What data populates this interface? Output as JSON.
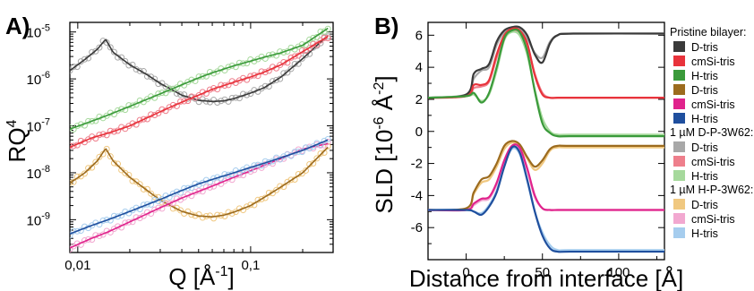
{
  "panels": {
    "a_label": "A)",
    "b_label": "B)"
  },
  "colors": {
    "D-tris": "#3a3a3a",
    "cmSi-tris": "#e8333b",
    "H-tris": "#3a9a3a",
    "D2": "#9c6b1e",
    "cmSi2": "#e0238c",
    "H2": "#1f4f9e",
    "D3": "#a8a8a8",
    "cmSi3": "#ee7f8c",
    "H3": "#a6d99c",
    "D4": "#f0c880",
    "cmSi4": "#f2a8d0",
    "H4": "#a6cdee"
  },
  "chart_data": [
    {
      "type": "scatter",
      "panel": "A)",
      "xlabel": "Q [Å⁻¹]",
      "ylabel": "RQ⁴",
      "xscale": "log",
      "yscale": "log",
      "xlim": [
        0.009,
        0.3
      ],
      "ylim": [
        2e-10,
        1.6e-05
      ],
      "xticklabels": [
        {
          "value": 0.01,
          "label": "0,01"
        },
        {
          "value": 0.1,
          "label": "0,1"
        }
      ],
      "yticklabels": [
        {
          "value": 1e-05,
          "label": "10-5",
          "base": "10",
          "exp": "-5"
        },
        {
          "value": 1e-06,
          "label": "10-6",
          "base": "10",
          "exp": "-6"
        },
        {
          "value": 1e-07,
          "label": "10-7",
          "base": "10",
          "exp": "-7"
        },
        {
          "value": 1e-08,
          "label": "10-8",
          "base": "10",
          "exp": "-8"
        },
        {
          "value": 1e-09,
          "label": "10-9",
          "base": "10",
          "exp": "-9"
        }
      ],
      "series": [
        {
          "group": "Pristine bilayer",
          "contrast": "D-tris",
          "color": "#3a3a3a",
          "marker_color": "#a8a8a8",
          "x": [
            0.009,
            0.011,
            0.013,
            0.0145,
            0.016,
            0.02,
            0.025,
            0.03,
            0.04,
            0.05,
            0.06,
            0.07,
            0.08,
            0.1,
            0.12,
            0.15,
            0.2,
            0.28
          ],
          "y": [
            1.5e-06,
            2.6e-06,
            4.3e-06,
            7e-06,
            3.7e-06,
            2e-06,
            1.25e-06,
            8e-07,
            4.5e-07,
            3.5e-07,
            3.3e-07,
            3.4e-07,
            3.8e-07,
            5e-07,
            6.5e-07,
            1.1e-06,
            2.7e-06,
            8.5e-06
          ]
        },
        {
          "group": "Pristine bilayer",
          "contrast": "cmSi-tris",
          "color": "#e8333b",
          "marker_color": "#ee7f8c",
          "x": [
            0.009,
            0.012,
            0.015,
            0.02,
            0.03,
            0.04,
            0.05,
            0.06,
            0.08,
            0.1,
            0.12,
            0.15,
            0.2,
            0.28
          ],
          "y": [
            3.5e-08,
            5.5e-08,
            7e-08,
            1e-07,
            2e-07,
            3.2e-07,
            4.5e-07,
            6e-07,
            8.5e-07,
            1.1e-06,
            1.4e-06,
            2e-06,
            3.8e-06,
            8e-06
          ]
        },
        {
          "group": "Pristine bilayer",
          "contrast": "H-tris",
          "color": "#3a9a3a",
          "marker_color": "#a6d99c",
          "x": [
            0.009,
            0.012,
            0.015,
            0.02,
            0.03,
            0.04,
            0.05,
            0.06,
            0.08,
            0.1,
            0.12,
            0.15,
            0.2,
            0.28
          ],
          "y": [
            8.5e-08,
            1.25e-07,
            1.7e-07,
            2.6e-07,
            4.8e-07,
            7.5e-07,
            1.05e-06,
            1.35e-06,
            1.9e-06,
            2.4e-06,
            2.9e-06,
            3.6e-06,
            5.2e-06,
            1.2e-05
          ]
        },
        {
          "group": "1 µM H-P-3W62",
          "contrast": "D-tris",
          "color": "#9c6b1e",
          "marker_color": "#f0c880",
          "x": [
            0.009,
            0.011,
            0.013,
            0.0145,
            0.016,
            0.02,
            0.025,
            0.03,
            0.04,
            0.05,
            0.06,
            0.07,
            0.08,
            0.1,
            0.12,
            0.15,
            0.2,
            0.28
          ],
          "y": [
            6e-09,
            1e-08,
            1.8e-08,
            3.3e-08,
            1.8e-08,
            8e-09,
            4.3e-09,
            2.6e-09,
            1.5e-09,
            1.2e-09,
            1.15e-09,
            1.25e-09,
            1.45e-09,
            2e-09,
            3e-09,
            5e-09,
            1e-08,
            3.5e-08
          ]
        },
        {
          "group": "Pristine bilayer",
          "contrast": "cmSi-tris",
          "color": "#e0238c",
          "marker_color": "#f2a8d0",
          "x": [
            0.009,
            0.012,
            0.015,
            0.02,
            0.03,
            0.04,
            0.05,
            0.06,
            0.08,
            0.1,
            0.12,
            0.15,
            0.2,
            0.28
          ],
          "y": [
            2.5e-10,
            4e-10,
            5.5e-10,
            9e-10,
            1.8e-09,
            2.9e-09,
            4e-09,
            5.2e-09,
            8e-09,
            1.1e-08,
            1.45e-08,
            2e-08,
            3.2e-08,
            4.2e-08
          ]
        },
        {
          "group": "Pristine bilayer",
          "contrast": "H-tris",
          "color": "#1f4f9e",
          "marker_color": "#a6cdee",
          "x": [
            0.009,
            0.012,
            0.015,
            0.02,
            0.03,
            0.04,
            0.05,
            0.06,
            0.08,
            0.1,
            0.12,
            0.15,
            0.2,
            0.28
          ],
          "y": [
            5e-10,
            7.5e-10,
            1e-09,
            1.5e-09,
            2.7e-09,
            4.2e-09,
            5.8e-09,
            7.2e-09,
            1e-08,
            1.3e-08,
            1.6e-08,
            2.1e-08,
            3e-08,
            5e-08
          ]
        }
      ]
    },
    {
      "type": "line",
      "panel": "B)",
      "xlabel": "Distance from interface [Å]",
      "ylabel": "SLD [10-6 Å-2]",
      "ylabel_parts": {
        "pre": "SLD [10",
        "sup1": "-6",
        "mid": " Å",
        "sup2": "-2",
        "post": "]"
      },
      "xlim": [
        -25,
        130
      ],
      "ylim": [
        -8,
        6.8
      ],
      "xticks": [
        0,
        50,
        100
      ],
      "yticks": [
        -6,
        -4,
        -2,
        0,
        2,
        4,
        6
      ],
      "series": [
        {
          "contrast": "D-tris",
          "color": "#3a3a3a",
          "x": [
            -25,
            0,
            5,
            10,
            15,
            20,
            25,
            30,
            35,
            40,
            45,
            50,
            55,
            60,
            70,
            130
          ],
          "y": [
            2.1,
            2.3,
            3.6,
            3.9,
            4.2,
            5.6,
            6.3,
            6.5,
            6.5,
            6.0,
            4.8,
            4.3,
            5.5,
            6.0,
            6.1,
            6.1
          ]
        },
        {
          "contrast": "cmSi-tris",
          "color": "#e8333b",
          "x": [
            -25,
            0,
            5,
            10,
            15,
            20,
            25,
            30,
            35,
            40,
            45,
            50,
            55,
            60,
            70,
            130
          ],
          "y": [
            2.1,
            2.2,
            2.9,
            2.9,
            3.2,
            4.8,
            6.0,
            6.4,
            6.3,
            5.5,
            3.5,
            2.3,
            2.1,
            2.1,
            2.1,
            2.1
          ]
        },
        {
          "contrast": "H-tris",
          "color": "#3a9a3a",
          "x": [
            -25,
            0,
            5,
            10,
            15,
            20,
            25,
            30,
            35,
            40,
            45,
            50,
            55,
            60,
            70,
            130
          ],
          "y": [
            2.1,
            2.2,
            2.4,
            1.8,
            2.4,
            4.0,
            5.8,
            6.3,
            6.2,
            5.0,
            2.5,
            0.5,
            -0.1,
            -0.3,
            -0.3,
            -0.3
          ]
        },
        {
          "contrast": "D-tris",
          "color": "#9c6b1e",
          "x": [
            -25,
            0,
            5,
            10,
            15,
            20,
            25,
            30,
            35,
            40,
            45,
            50,
            55,
            60,
            70,
            130
          ],
          "y": [
            -4.9,
            -4.8,
            -3.8,
            -3.0,
            -2.8,
            -2.0,
            -0.9,
            -0.6,
            -0.8,
            -1.6,
            -2.2,
            -1.8,
            -1.1,
            -0.9,
            -0.9,
            -0.9
          ]
        },
        {
          "contrast": "cmSi-tris",
          "color": "#e0238c",
          "x": [
            -25,
            0,
            5,
            10,
            15,
            20,
            25,
            30,
            35,
            40,
            45,
            50,
            55,
            60,
            70,
            130
          ],
          "y": [
            -4.9,
            -4.9,
            -4.5,
            -4.2,
            -4.1,
            -3.2,
            -1.8,
            -0.9,
            -1.0,
            -2.3,
            -4.0,
            -4.8,
            -4.9,
            -4.9,
            -4.9,
            -4.9
          ]
        },
        {
          "contrast": "H-tris",
          "color": "#1f4f9e",
          "x": [
            -25,
            0,
            5,
            10,
            15,
            20,
            25,
            30,
            35,
            40,
            45,
            50,
            55,
            60,
            70,
            130
          ],
          "y": [
            -4.9,
            -4.9,
            -5.0,
            -5.2,
            -4.7,
            -3.8,
            -2.2,
            -1.0,
            -1.3,
            -3.0,
            -5.0,
            -6.5,
            -7.3,
            -7.5,
            -7.5,
            -7.5
          ]
        },
        {
          "contrast": "D-tris",
          "color": "#a8a8a8",
          "x": [
            -25,
            0,
            5,
            10,
            15,
            20,
            25,
            30,
            35,
            40,
            45,
            50,
            55,
            60,
            70,
            130
          ],
          "y": [
            2.1,
            2.3,
            3.3,
            3.8,
            4.0,
            5.4,
            6.2,
            6.5,
            6.4,
            5.8,
            4.9,
            4.6,
            5.6,
            6.0,
            6.1,
            6.1
          ]
        },
        {
          "contrast": "cmSi-tris",
          "color": "#ee7f8c",
          "x": [
            -25,
            0,
            5,
            10,
            15,
            20,
            25,
            30,
            35,
            40,
            45,
            50,
            55,
            60,
            70,
            130
          ],
          "y": [
            2.1,
            2.2,
            2.7,
            2.8,
            3.1,
            4.6,
            5.9,
            6.3,
            6.2,
            5.4,
            3.6,
            2.4,
            2.1,
            2.1,
            2.1,
            2.1
          ]
        },
        {
          "contrast": "H-tris",
          "color": "#a6d99c",
          "x": [
            -25,
            0,
            5,
            10,
            15,
            20,
            25,
            30,
            35,
            40,
            45,
            50,
            55,
            60,
            70,
            130
          ],
          "y": [
            2.1,
            2.2,
            2.3,
            1.9,
            2.3,
            3.8,
            5.7,
            6.2,
            6.0,
            4.8,
            2.6,
            0.8,
            0.0,
            -0.2,
            -0.2,
            -0.2
          ]
        },
        {
          "contrast": "D-tris",
          "color": "#f0c880",
          "x": [
            -25,
            0,
            5,
            10,
            15,
            20,
            25,
            30,
            35,
            40,
            45,
            50,
            55,
            60,
            70,
            130
          ],
          "y": [
            -4.9,
            -4.8,
            -3.9,
            -3.2,
            -3.0,
            -2.2,
            -1.1,
            -0.7,
            -0.9,
            -1.7,
            -2.4,
            -2.0,
            -1.2,
            -1.0,
            -1.0,
            -1.0
          ]
        },
        {
          "contrast": "cmSi-tris",
          "color": "#f2a8d0",
          "x": [
            -25,
            0,
            5,
            10,
            15,
            20,
            25,
            30,
            35,
            40,
            45,
            50,
            55,
            60,
            70,
            130
          ],
          "y": [
            -4.9,
            -4.9,
            -4.6,
            -4.3,
            -4.2,
            -3.3,
            -1.9,
            -1.0,
            -1.1,
            -2.4,
            -4.1,
            -4.8,
            -4.9,
            -4.9,
            -4.9,
            -4.9
          ]
        },
        {
          "contrast": "H-tris",
          "color": "#a6cdee",
          "x": [
            -25,
            0,
            5,
            10,
            15,
            20,
            25,
            30,
            35,
            40,
            45,
            50,
            55,
            60,
            70,
            130
          ],
          "y": [
            -4.9,
            -4.9,
            -5.0,
            -5.1,
            -4.6,
            -3.7,
            -2.1,
            -1.1,
            -1.4,
            -3.1,
            -5.0,
            -6.3,
            -7.1,
            -7.4,
            -7.4,
            -7.4
          ]
        }
      ]
    }
  ],
  "legend": {
    "groups": [
      {
        "title": "Pristine bilayer:",
        "items": [
          {
            "label": "D-tris",
            "color": "#3a3a3a"
          },
          {
            "label": "cmSi-tris",
            "color": "#e8333b"
          },
          {
            "label": "H-tris",
            "color": "#3a9a3a"
          },
          {
            "label": "D-tris",
            "color": "#9c6b1e"
          },
          {
            "label": "cmSi-tris",
            "color": "#e0238c"
          },
          {
            "label": "H-tris",
            "color": "#1f4f9e"
          }
        ]
      },
      {
        "title": "1 µM D-P-3W62:",
        "items": [
          {
            "label": "D-tris",
            "color": "#a8a8a8"
          },
          {
            "label": "cmSi-tris",
            "color": "#ee7f8c"
          },
          {
            "label": "H-tris",
            "color": "#a6d99c"
          }
        ]
      },
      {
        "title": "1 µM H-P-3W62:",
        "items": [
          {
            "label": "D-tris",
            "color": "#f0c880"
          },
          {
            "label": "cmSi-tris",
            "color": "#f2a8d0"
          },
          {
            "label": "H-tris",
            "color": "#a6cdee"
          }
        ]
      }
    ]
  }
}
